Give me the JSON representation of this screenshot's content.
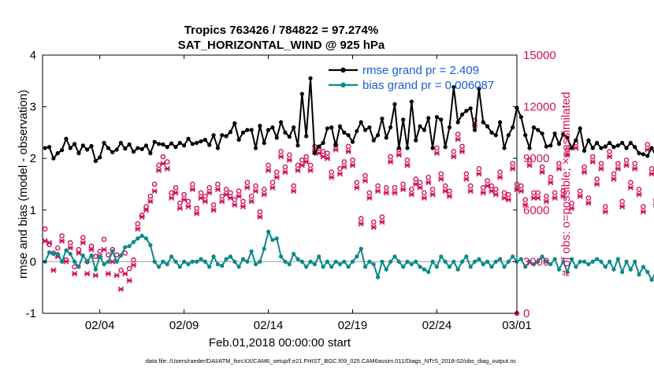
{
  "chart_data": {
    "type": "line",
    "title_line1": "Tropics 763426 / 784822 = 97.274%",
    "title_line2": "SAT_HORIZONTAL_WIND @ 925 hPa",
    "ylabel_left": "rmse and bias (model - observation)",
    "ylabel_right": "# of obs: o=possible; ×=assimilated",
    "xlabel": "Feb.01,2018 00:00:00 start",
    "footnote": "data file: /Users/raeder/DAI/ATM_forcXX/CAM6_setup/f.e21.FHIST_BGC.f09_025.CAM6assim.011/Diags_NTrS_2018-02/obs_diag_output.nc",
    "left_ylim": [
      -1,
      4
    ],
    "left_yticks": [
      "-1",
      "0",
      "1",
      "2",
      "3",
      "4"
    ],
    "right_ylim": [
      0,
      15000
    ],
    "right_yticks": [
      "0",
      "3000",
      "6000",
      "9000",
      "12000",
      "15000"
    ],
    "xlim": [
      0.6,
      28.75
    ],
    "xticks": [
      {
        "x": 4,
        "label": "02/04"
      },
      {
        "x": 9,
        "label": "02/09"
      },
      {
        "x": 14,
        "label": "02/14"
      },
      {
        "x": 19,
        "label": "02/19"
      },
      {
        "x": 24,
        "label": "02/24"
      },
      {
        "x": 28.75,
        "label": "03/01"
      }
    ],
    "zero_line": 0,
    "colors": {
      "rmse": "#000000",
      "bias": "#0a8a8a",
      "obs": "#d0105a",
      "legend_text": "#1a5fd8",
      "zero_line": "#b0b0b0"
    },
    "legend": [
      {
        "label": "rmse grand pr = 2.409",
        "series": "rmse"
      },
      {
        "label": "bias grand pr = 0.006087",
        "series": "bias"
      }
    ],
    "series": [
      {
        "name": "rmse",
        "x_start": 0.75,
        "x_step": 0.25,
        "values": [
          2.2,
          2.22,
          2.0,
          2.1,
          2.16,
          2.38,
          2.2,
          2.28,
          2.1,
          2.25,
          2.17,
          2.24,
          1.95,
          2.02,
          2.3,
          2.2,
          2.12,
          2.17,
          2.3,
          2.19,
          2.27,
          2.13,
          2.2,
          2.18,
          2.25,
          2.1,
          2.32,
          2.28,
          2.27,
          2.22,
          2.29,
          2.22,
          2.3,
          2.25,
          2.38,
          2.28,
          2.3,
          2.33,
          2.36,
          2.26,
          2.45,
          2.2,
          2.45,
          2.43,
          2.51,
          2.68,
          2.36,
          2.5,
          2.55,
          2.55,
          2.2,
          2.63,
          2.3,
          2.55,
          2.6,
          2.4,
          2.7,
          2.5,
          2.42,
          2.6,
          2.25,
          3.25,
          2.43,
          3.55,
          2.1,
          2.23,
          2.3,
          2.58,
          2.6,
          2.25,
          2.62,
          2.5,
          2.45,
          2.32,
          2.53,
          2.7,
          2.55,
          2.6,
          2.35,
          2.45,
          2.77,
          2.4,
          2.6,
          3.05,
          2.2,
          2.75,
          2.2,
          3.1,
          2.35,
          2.62,
          2.55,
          2.78,
          2.2,
          2.8,
          2.75,
          2.22,
          2.6,
          3.38,
          2.7,
          2.85,
          2.92,
          2.97,
          2.55,
          3.35,
          2.7,
          2.62,
          2.5,
          2.45,
          2.7,
          2.2,
          2.45,
          2.6,
          2.98,
          2.8,
          2.45,
          2.2,
          2.6,
          2.55,
          2.48,
          2.23,
          2.25,
          2.48,
          2.28,
          2.47,
          2.4,
          2.2,
          2.35,
          2.58,
          2.15,
          2.35,
          2.2,
          2.3,
          2.2,
          2.23,
          2.3,
          2.22,
          2.25,
          2.3,
          2.2,
          2.3,
          2.22,
          2.1,
          2.08,
          2.05,
          2.2,
          2.05,
          2.22,
          2.18,
          2.14
        ]
      },
      {
        "name": "bias",
        "x_start": 0.75,
        "x_step": 0.25,
        "values": [
          0.0,
          0.18,
          0.15,
          0.15,
          0.0,
          0.22,
          0.15,
          0.0,
          -0.1,
          0.12,
          0.0,
          0.12,
          -0.15,
          0.1,
          -0.05,
          0.0,
          0.2,
          0.0,
          0.12,
          0.28,
          0.3,
          0.38,
          0.45,
          0.5,
          0.45,
          0.32,
          0.0,
          -0.1,
          0.0,
          -0.05,
          0.1,
          0.0,
          -0.1,
          0.0,
          -0.05,
          0.0,
          0.0,
          0.05,
          0.0,
          -0.1,
          0.1,
          -0.05,
          -0.08,
          0.05,
          0.1,
          0.0,
          -0.1,
          0.05,
          0.0,
          0.2,
          -0.05,
          0.0,
          0.25,
          0.58,
          0.42,
          0.45,
          0.1,
          0.0,
          -0.05,
          0.15,
          0.05,
          0.0,
          -0.1,
          0.0,
          -0.05,
          0.1,
          -0.1,
          0.0,
          -0.1,
          0.0,
          -0.05,
          0.0,
          -0.1,
          0.0,
          0.1,
          0.25,
          -0.1,
          0.0,
          -0.05,
          -0.3,
          0.0,
          -0.15,
          0.0,
          0.1,
          0.0,
          -0.1,
          0.0,
          -0.05,
          0.0,
          -0.1,
          -0.15,
          -0.2,
          0.0,
          -0.1,
          0.1,
          0.0,
          -0.1,
          0.0,
          -0.15,
          0.0,
          0.1,
          -0.1,
          0.0,
          0.05,
          -0.05,
          0.0,
          -0.1,
          0.0,
          0.05,
          -0.1,
          0.0,
          0.1,
          0.0,
          0.05,
          -0.1,
          0.0,
          -0.05,
          0.0,
          0.1,
          0.0,
          -0.05,
          0.05,
          -0.15,
          0.0,
          -0.2,
          0.05,
          -0.1,
          0.0,
          0.0,
          -0.05,
          0.0,
          0.05,
          0.0,
          -0.1,
          0.0,
          -0.15,
          0.05,
          -0.2,
          0.0,
          -0.15,
          0.0,
          -0.25,
          -0.1,
          -0.2,
          -0.35,
          -0.2,
          -0.3,
          -0.25,
          -0.1,
          -0.25,
          0.25,
          0.1
        ]
      },
      {
        "name": "obs_possible",
        "x_start": 0.75,
        "x_step": 0.25,
        "values": [
          4900,
          4000,
          3500,
          3800,
          4500,
          3100,
          4100,
          2700,
          3700,
          4400,
          3000,
          3900,
          3300,
          3600,
          4300,
          3400,
          3700,
          3400,
          2500,
          3500,
          2600,
          3100,
          5200,
          5700,
          6200,
          6800,
          7500,
          8600,
          9100,
          8800,
          7000,
          7300,
          6400,
          6900,
          6500,
          7500,
          6100,
          7000,
          6800,
          7300,
          6300,
          7500,
          6800,
          7200,
          7000,
          6600,
          7100,
          6500,
          7600,
          6800,
          7400,
          5900,
          7200,
          8600,
          7600,
          8200,
          9400,
          8500,
          9200,
          7400,
          8600,
          8900,
          9100,
          8600,
          9700,
          9600,
          9400,
          9300,
          8200,
          9800,
          8400,
          8800,
          9700,
          8900,
          7600,
          5500,
          8000,
          7000,
          5300,
          7400,
          5600,
          7300,
          9100,
          7300,
          9500,
          7500,
          8900,
          7200,
          7800,
          7600,
          7000,
          7900,
          7200,
          9600,
          8100,
          7400,
          7100,
          9400,
          10400,
          9700,
          8100,
          7400,
          11200,
          8400,
          7300,
          7700,
          7400,
          7200,
          8200,
          7000,
          6900,
          8700,
          7500,
          7400,
          6600,
          8900,
          7000,
          7000,
          8500,
          6800,
          7900,
          7000,
          8700,
          7100,
          9500,
          6400,
          9900,
          7100,
          8500,
          6700,
          9100,
          7800,
          8700,
          6200,
          9400,
          8100,
          8700,
          6500,
          8900,
          7600,
          8700,
          7200,
          6200,
          9800,
          8400,
          6600,
          9100,
          7000,
          6900
        ]
      },
      {
        "name": "obs_assimilated",
        "x_start": 0.75,
        "x_step": 0.25,
        "values": [
          4200,
          4100,
          2500,
          3300,
          4200,
          3000,
          3800,
          2300,
          3500,
          4100,
          2300,
          3700,
          2200,
          3300,
          3700,
          2300,
          3000,
          2200,
          1400,
          2300,
          1900,
          2800,
          4900,
          5600,
          6000,
          6500,
          7100,
          8300,
          8700,
          8400,
          6700,
          7000,
          6100,
          6600,
          6200,
          7200,
          5800,
          6700,
          6500,
          7000,
          6000,
          7200,
          6500,
          6900,
          6700,
          6300,
          6800,
          6200,
          7300,
          6500,
          7100,
          5600,
          6900,
          8300,
          7300,
          7900,
          9100,
          8200,
          8900,
          7100,
          8300,
          8600,
          8800,
          8300,
          9400,
          9300,
          9100,
          9000,
          7900,
          9500,
          8100,
          8500,
          9400,
          8600,
          7300,
          5200,
          7700,
          6700,
          5000,
          7100,
          5300,
          7000,
          8800,
          7000,
          9200,
          7200,
          8600,
          6900,
          7500,
          7300,
          6700,
          7600,
          6900,
          9300,
          7800,
          7100,
          6800,
          9100,
          10100,
          9400,
          7800,
          7100,
          10900,
          8100,
          7000,
          7400,
          7100,
          6900,
          7900,
          6700,
          6600,
          8400,
          7200,
          7100,
          6300,
          8600,
          6700,
          6700,
          8200,
          6500,
          7600,
          6700,
          8400,
          6800,
          9200,
          6100,
          9600,
          6800,
          8200,
          6400,
          8800,
          7500,
          8400,
          5900,
          9100,
          7800,
          8400,
          6200,
          8600,
          7300,
          8400,
          6900,
          5900,
          9500,
          8100,
          6300,
          8800,
          6700,
          6600
        ]
      }
    ]
  }
}
